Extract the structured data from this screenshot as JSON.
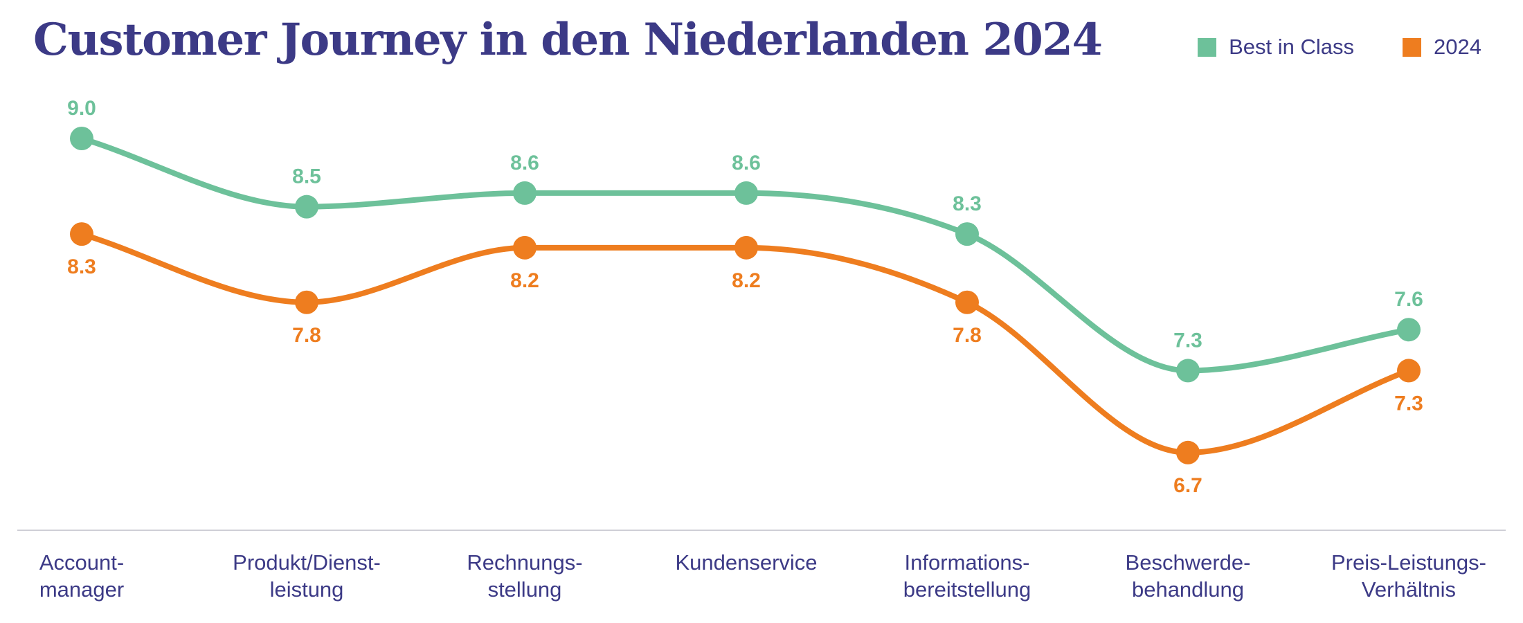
{
  "chart_data": {
    "type": "line",
    "title": "Customer Journey in den Niederlanden 2024",
    "xlabel": "",
    "ylabel": "",
    "grid": false,
    "legend_position": "top-right",
    "categories": [
      [
        "Account-",
        "manager"
      ],
      [
        "Produkt/Dienst-",
        "leistung"
      ],
      [
        "Rechnungs-",
        "stellung"
      ],
      [
        "Kundenservice"
      ],
      [
        "Informations-",
        "bereitstellung"
      ],
      [
        "Beschwerde-",
        "behandlung"
      ],
      [
        "Preis-Leistungs-",
        "Verhältnis"
      ]
    ],
    "series": [
      {
        "name": "Best in Class",
        "color": "#6dc19a",
        "values": [
          9.0,
          8.5,
          8.6,
          8.6,
          8.3,
          7.3,
          7.6
        ],
        "labels": [
          "9.0",
          "8.5",
          "8.6",
          "8.6",
          "8.3",
          "7.3",
          "7.6"
        ]
      },
      {
        "name": "2024",
        "color": "#ee7d1f",
        "values": [
          8.3,
          7.8,
          8.2,
          8.2,
          7.8,
          6.7,
          7.3
        ],
        "labels": [
          "8.3",
          "7.8",
          "8.2",
          "8.2",
          "7.8",
          "6.7",
          "7.3"
        ]
      }
    ]
  },
  "colors": {
    "text": "#3c3a86",
    "axis": "#cfcfd6"
  }
}
